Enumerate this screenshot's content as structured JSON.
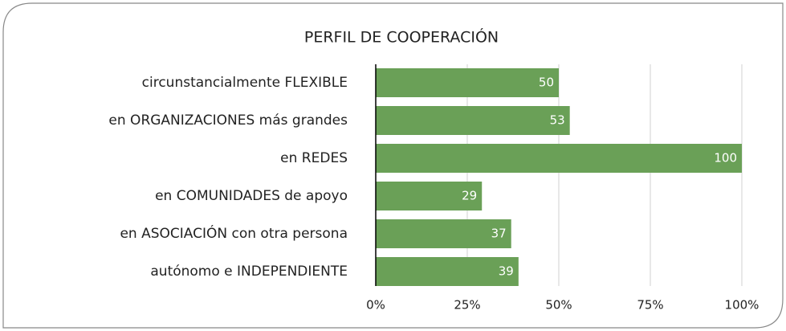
{
  "chart_data": {
    "type": "bar",
    "orientation": "horizontal",
    "title": "PERFIL DE COOPERACIÓN",
    "categories": [
      "circunstancialmente FLEXIBLE",
      "en ORGANIZACIONES más grandes",
      "en REDES",
      "en COMUNIDADES de apoyo",
      "en ASOCIACIÓN con otra persona",
      "autónomo e INDEPENDIENTE"
    ],
    "values": [
      50,
      53,
      100,
      29,
      37,
      39
    ],
    "color": "#6aa057",
    "xlim": [
      0,
      100
    ],
    "xticks": [
      {
        "value": 0,
        "label": "0%"
      },
      {
        "value": 25,
        "label": "25%"
      },
      {
        "value": 50,
        "label": "50%"
      },
      {
        "value": 75,
        "label": "75%"
      },
      {
        "value": 100,
        "label": "100%"
      }
    ],
    "grid": true
  }
}
